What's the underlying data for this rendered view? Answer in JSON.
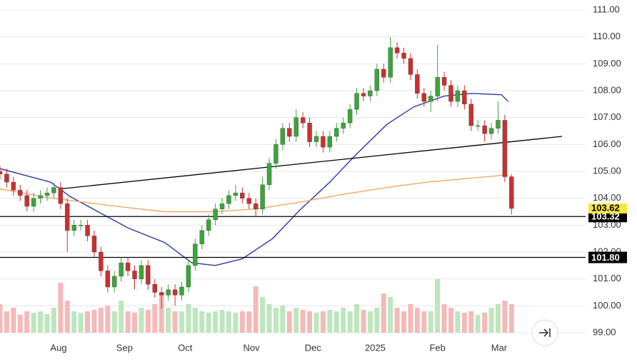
{
  "chart_data": {
    "type": "candlestick",
    "x": [
      0,
      2,
      4,
      6,
      8,
      10,
      12,
      14,
      16,
      18,
      20,
      22,
      24,
      26,
      28,
      30,
      32,
      34,
      36,
      38,
      40,
      42,
      44,
      46,
      48,
      50,
      52,
      54,
      56,
      58,
      60,
      62,
      64,
      66,
      68,
      70,
      72,
      74,
      76,
      78,
      80,
      82,
      84,
      86,
      88,
      90,
      92,
      94,
      96,
      98,
      100,
      102,
      104,
      106,
      108,
      110,
      112,
      114,
      116,
      118,
      120,
      122,
      124,
      126,
      128,
      130,
      132,
      134,
      136,
      138,
      140,
      142,
      144,
      146,
      148,
      150,
      152
    ],
    "open": [
      105.0,
      104.9,
      104.6,
      104.3,
      104.1,
      103.7,
      104.0,
      104.1,
      104.2,
      104.4,
      103.8,
      102.8,
      103.0,
      103.0,
      102.6,
      102.0,
      101.3,
      100.7,
      101.1,
      101.6,
      101.3,
      101.0,
      101.5,
      100.8,
      100.5,
      100.4,
      100.6,
      100.4,
      100.7,
      101.5,
      102.3,
      102.8,
      103.2,
      103.6,
      103.8,
      104.1,
      104.2,
      104.0,
      103.8,
      103.6,
      104.5,
      105.3,
      106.0,
      106.6,
      106.3,
      107.0,
      106.8,
      106.1,
      106.3,
      105.9,
      106.3,
      106.6,
      106.8,
      107.3,
      107.9,
      107.8,
      108.0,
      108.8,
      108.5,
      109.6,
      109.4,
      109.2,
      108.6,
      107.9,
      107.6,
      107.8,
      108.5,
      108.2,
      107.6,
      108.0,
      107.5,
      106.7,
      106.7,
      106.4,
      106.6,
      106.9,
      104.8
    ],
    "high": [
      105.2,
      105.1,
      104.8,
      104.5,
      104.3,
      104.2,
      104.3,
      104.4,
      104.6,
      104.6,
      104.0,
      103.2,
      103.2,
      103.2,
      102.8,
      102.2,
      101.5,
      101.3,
      101.8,
      101.8,
      101.5,
      101.7,
      101.7,
      101.0,
      100.7,
      100.8,
      100.8,
      100.9,
      101.7,
      102.5,
      103.0,
      103.4,
      103.8,
      104.0,
      104.3,
      104.5,
      104.4,
      104.2,
      104.0,
      104.8,
      105.5,
      106.2,
      106.8,
      106.8,
      107.3,
      107.2,
      107.0,
      106.5,
      106.5,
      106.5,
      106.8,
      107.0,
      107.5,
      108.1,
      108.1,
      108.2,
      109.0,
      109.0,
      110.0,
      109.8,
      109.6,
      109.4,
      108.8,
      108.1,
      108.0,
      109.7,
      108.7,
      108.4,
      108.2,
      108.2,
      107.7,
      106.9,
      106.9,
      106.8,
      107.6,
      107.1,
      104.9
    ],
    "low": [
      104.7,
      104.4,
      104.1,
      103.9,
      103.5,
      103.5,
      103.8,
      103.9,
      104.0,
      103.6,
      102.0,
      102.6,
      102.8,
      102.4,
      101.8,
      101.1,
      100.5,
      100.5,
      100.9,
      101.1,
      100.6,
      100.8,
      100.6,
      100.3,
      99.9,
      100.2,
      100.0,
      100.2,
      100.5,
      101.3,
      102.1,
      102.6,
      103.0,
      103.4,
      103.6,
      103.9,
      103.8,
      103.6,
      103.3,
      103.4,
      104.3,
      105.1,
      105.8,
      106.1,
      106.1,
      106.6,
      105.9,
      105.9,
      105.7,
      105.7,
      106.1,
      106.4,
      106.6,
      107.1,
      107.6,
      107.6,
      107.8,
      108.3,
      108.3,
      109.2,
      109.0,
      108.4,
      107.7,
      107.4,
      107.2,
      107.6,
      108.0,
      107.4,
      107.4,
      107.3,
      106.5,
      106.5,
      106.1,
      106.2,
      106.4,
      104.6,
      103.4
    ],
    "close": [
      104.9,
      104.6,
      104.3,
      104.1,
      103.7,
      104.0,
      104.1,
      104.2,
      104.4,
      103.8,
      102.8,
      103.0,
      103.0,
      102.6,
      102.0,
      101.3,
      100.7,
      101.1,
      101.6,
      101.3,
      101.0,
      101.5,
      100.8,
      100.5,
      100.4,
      100.6,
      100.4,
      100.7,
      101.5,
      102.3,
      102.8,
      103.2,
      103.6,
      103.8,
      104.1,
      104.2,
      104.0,
      103.8,
      103.6,
      104.5,
      105.3,
      106.0,
      106.6,
      106.3,
      107.0,
      106.8,
      106.1,
      106.3,
      105.9,
      106.3,
      106.6,
      106.8,
      107.3,
      107.9,
      107.8,
      108.0,
      108.8,
      108.5,
      109.6,
      109.4,
      109.2,
      108.6,
      107.9,
      107.6,
      107.8,
      108.5,
      108.2,
      107.6,
      108.0,
      107.5,
      106.7,
      106.7,
      106.4,
      106.6,
      106.9,
      104.8,
      103.62
    ],
    "volume": [
      40,
      30,
      35,
      25,
      30,
      28,
      30,
      26,
      35,
      70,
      45,
      30,
      28,
      30,
      32,
      35,
      38,
      30,
      45,
      30,
      28,
      35,
      32,
      40,
      55,
      35,
      30,
      30,
      40,
      35,
      30,
      28,
      30,
      32,
      30,
      28,
      30,
      30,
      65,
      50,
      40,
      35,
      38,
      30,
      35,
      32,
      30,
      28,
      30,
      32,
      30,
      35,
      30,
      40,
      32,
      30,
      35,
      55,
      50,
      35,
      30,
      40,
      35,
      30,
      30,
      75,
      40,
      35,
      30,
      28,
      30,
      25,
      28,
      35,
      40,
      45,
      40
    ],
    "up_color": "#3aa63a",
    "down_color": "#cc2f2f",
    "up_volume_color": "#bde6bd",
    "down_volume_color": "#f4b9b9",
    "xlim": [
      0,
      174
    ],
    "xticks": [
      {
        "value": 17.4,
        "label": "Aug"
      },
      {
        "value": 37,
        "label": "Sep"
      },
      {
        "value": 55,
        "label": "Oct"
      },
      {
        "value": 74.7,
        "label": "Nov"
      },
      {
        "value": 93,
        "label": "Dec"
      },
      {
        "value": 111.5,
        "label": "2025"
      },
      {
        "value": 130,
        "label": "Feb"
      },
      {
        "value": 148.3,
        "label": "Mar"
      }
    ],
    "ylim": [
      99,
      111
    ],
    "yticks": [
      {
        "value": 99,
        "label": "99.00"
      },
      {
        "value": 100,
        "label": "100.00"
      },
      {
        "value": 101,
        "label": "101.00"
      },
      {
        "value": 102,
        "label": "102.00"
      },
      {
        "value": 103,
        "label": "103.00"
      },
      {
        "value": 104,
        "label": "104.00"
      },
      {
        "value": 105,
        "label": "105.00"
      },
      {
        "value": 106,
        "label": "106.00"
      },
      {
        "value": 107,
        "label": "107.00"
      },
      {
        "value": 108,
        "label": "108.00"
      },
      {
        "value": 109,
        "label": "109.00"
      },
      {
        "value": 110,
        "label": "110.00"
      },
      {
        "value": 111,
        "label": "111.00"
      }
    ],
    "grid": true,
    "moving_averages": [
      {
        "color": "#2b3a9e",
        "x": [
          0,
          15,
          21,
          38,
          49,
          57,
          64,
          72,
          81,
          89,
          98,
          106,
          115,
          123,
          132,
          140,
          149,
          151
        ],
        "values": [
          105.1,
          104.6,
          104.05,
          102.9,
          102.35,
          101.6,
          101.5,
          101.75,
          102.5,
          103.55,
          104.6,
          105.65,
          106.75,
          107.4,
          107.8,
          107.9,
          107.85,
          107.6
        ]
      },
      {
        "color": "#f0a868",
        "x": [
          0,
          13,
          25,
          38,
          49,
          55,
          64,
          76,
          89,
          102,
          115,
          127,
          140,
          149,
          151
        ],
        "values": [
          104.35,
          104.05,
          103.85,
          103.65,
          103.5,
          103.5,
          103.5,
          103.6,
          103.85,
          104.15,
          104.4,
          104.6,
          104.75,
          104.85,
          104.85
        ]
      }
    ],
    "trendline": {
      "color": "#000000",
      "x": [
        18,
        167
      ],
      "values": [
        104.35,
        106.3
      ]
    },
    "levels": [
      103.32,
      {
        "value": 101.8,
        "label": "101.80"
      }
    ],
    "last_price": 103.62,
    "last_price_color": "#f5e642"
  }
}
